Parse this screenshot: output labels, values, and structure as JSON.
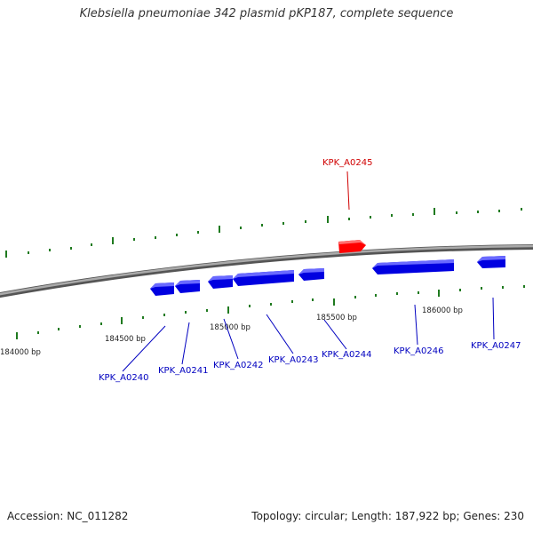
{
  "title": "Klebsiella pneumoniae 342 plasmid pKP187, complete sequence",
  "footer": {
    "accession": "Accession: NC_011282",
    "summary": "Topology: circular; Length: 187,922 bp; Genes: 230"
  },
  "colors": {
    "forward_gene": "#ff0000",
    "reverse_gene": "#0000ff",
    "backbone": "#808080",
    "tick": "#1f7a1f"
  },
  "position_labels": [
    "184000 bp",
    "184500 bp",
    "185000 bp",
    "185500 bp",
    "186000 bp"
  ],
  "genes": [
    {
      "name": "KPK_A0245",
      "strand": "+"
    },
    {
      "name": "KPK_A0240",
      "strand": "-"
    },
    {
      "name": "KPK_A0241",
      "strand": "-"
    },
    {
      "name": "KPK_A0242",
      "strand": "-"
    },
    {
      "name": "KPK_A0243",
      "strand": "-"
    },
    {
      "name": "KPK_A0244",
      "strand": "-"
    },
    {
      "name": "KPK_A0246",
      "strand": "-"
    },
    {
      "name": "KPK_A0247",
      "strand": "-"
    }
  ]
}
